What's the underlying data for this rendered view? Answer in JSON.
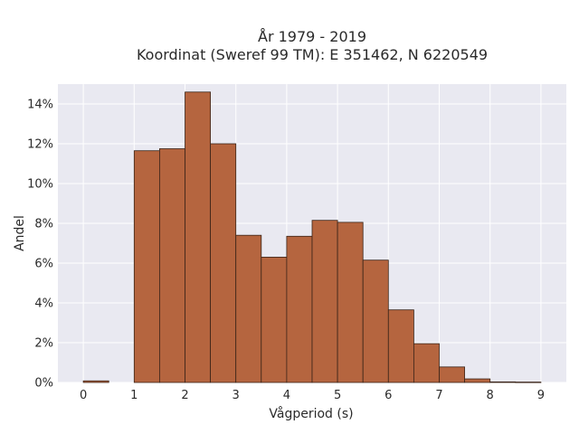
{
  "chart_data": {
    "type": "bar",
    "title_line1": "År 1979 - 2019",
    "title_line2": "Koordinat (Sweref 99 TM): E 351462, N 6220549",
    "xlabel": "Vågperiod (s)",
    "ylabel": "Andel",
    "xlim": [
      -0.5,
      9.5
    ],
    "ylim": [
      0,
      0.15
    ],
    "x_ticks": [
      0,
      1,
      2,
      3,
      4,
      5,
      6,
      7,
      8,
      9
    ],
    "y_ticks": [
      0,
      0.02,
      0.04,
      0.06,
      0.08,
      0.1,
      0.12,
      0.14
    ],
    "y_tick_labels": [
      "0%",
      "2%",
      "4%",
      "6%",
      "8%",
      "10%",
      "12%",
      "14%"
    ],
    "bin_width": 0.5,
    "bins": [
      {
        "x0": 0.0,
        "value": 0.0008
      },
      {
        "x0": 0.5,
        "value": 0.0
      },
      {
        "x0": 1.0,
        "value": 0.1165
      },
      {
        "x0": 1.5,
        "value": 0.1175
      },
      {
        "x0": 2.0,
        "value": 0.146
      },
      {
        "x0": 2.5,
        "value": 0.12
      },
      {
        "x0": 3.0,
        "value": 0.074
      },
      {
        "x0": 3.5,
        "value": 0.063
      },
      {
        "x0": 4.0,
        "value": 0.0735
      },
      {
        "x0": 4.5,
        "value": 0.0815
      },
      {
        "x0": 5.0,
        "value": 0.0805
      },
      {
        "x0": 5.5,
        "value": 0.0615
      },
      {
        "x0": 6.0,
        "value": 0.0365
      },
      {
        "x0": 6.5,
        "value": 0.0195
      },
      {
        "x0": 7.0,
        "value": 0.0078
      },
      {
        "x0": 7.5,
        "value": 0.0018
      },
      {
        "x0": 8.0,
        "value": 0.0003
      },
      {
        "x0": 8.5,
        "value": 0.0002
      }
    ],
    "grid": true,
    "bar_color": "#b5653f",
    "bar_edge_color": "#3a2418",
    "plot_background": "#e9e9f1",
    "grid_color": "#ffffff"
  }
}
